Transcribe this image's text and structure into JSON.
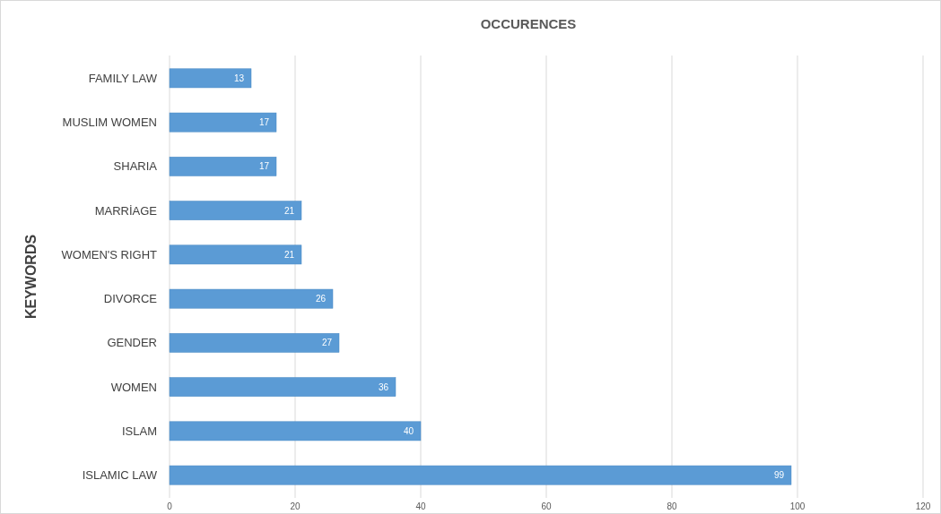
{
  "chart_data": {
    "type": "bar",
    "orientation": "horizontal",
    "title": "OCCURENCES",
    "ylabel": "KEYWORDS",
    "categories": [
      "FAMILY LAW",
      "MUSLIM WOMEN",
      "SHARIA",
      "MARRİAGE",
      "WOMEN'S RIGHT",
      "DIVORCE",
      "GENDER",
      "WOMEN",
      "ISLAM",
      "ISLAMIC LAW"
    ],
    "values": [
      13,
      17,
      17,
      21,
      21,
      26,
      27,
      36,
      40,
      99
    ],
    "color": "#5b9bd5",
    "xlim": [
      0,
      120
    ],
    "xticks": [
      0,
      20,
      40,
      60,
      80,
      100,
      120
    ],
    "grid": "x",
    "data_labels": true
  }
}
